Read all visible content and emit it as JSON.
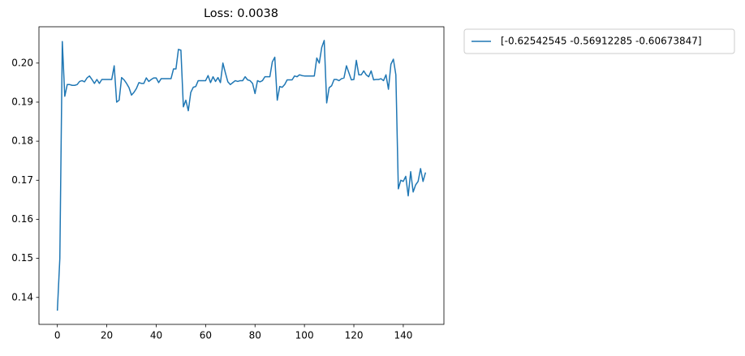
{
  "chart_data": {
    "type": "line",
    "title": "Loss: 0.0038",
    "x": [
      0,
      1,
      2,
      3,
      4,
      5,
      6,
      7,
      8,
      9,
      10,
      11,
      12,
      13,
      14,
      15,
      16,
      17,
      18,
      19,
      20,
      21,
      22,
      23,
      24,
      25,
      26,
      27,
      28,
      29,
      30,
      31,
      32,
      33,
      34,
      35,
      36,
      37,
      38,
      39,
      40,
      41,
      42,
      43,
      44,
      45,
      46,
      47,
      48,
      49,
      50,
      51,
      52,
      53,
      54,
      55,
      56,
      57,
      58,
      59,
      60,
      61,
      62,
      63,
      64,
      65,
      66,
      67,
      68,
      69,
      70,
      71,
      72,
      73,
      74,
      75,
      76,
      77,
      78,
      79,
      80,
      81,
      82,
      83,
      84,
      85,
      86,
      87,
      88,
      89,
      90,
      91,
      92,
      93,
      94,
      95,
      96,
      97,
      98,
      99,
      100,
      101,
      102,
      103,
      104,
      105,
      106,
      107,
      108,
      109,
      110,
      111,
      112,
      113,
      114,
      115,
      116,
      117,
      118,
      119,
      120,
      121,
      122,
      123,
      124,
      125,
      126,
      127,
      128,
      129,
      130,
      131,
      132,
      133,
      134,
      135,
      136,
      137,
      138,
      139,
      140,
      141,
      142,
      143,
      144,
      145,
      146,
      147,
      148,
      149
    ],
    "series": [
      {
        "name": "[-0.62542545 -0.56912285 -0.60673847]",
        "color": "#1f77b4",
        "values": [
          0.1366,
          0.15,
          0.2055,
          0.1915,
          0.1945,
          0.1945,
          0.1943,
          0.1943,
          0.1945,
          0.1953,
          0.1955,
          0.1952,
          0.1962,
          0.1967,
          0.1958,
          0.1948,
          0.1958,
          0.1948,
          0.1958,
          0.1958,
          0.1958,
          0.1958,
          0.1958,
          0.1993,
          0.19,
          0.1905,
          0.1963,
          0.1957,
          0.1948,
          0.1937,
          0.1918,
          0.1925,
          0.1935,
          0.195,
          0.1948,
          0.1948,
          0.1962,
          0.1953,
          0.1958,
          0.1962,
          0.1962,
          0.195,
          0.196,
          0.196,
          0.196,
          0.196,
          0.196,
          0.1985,
          0.1985,
          0.2035,
          0.2033,
          0.1888,
          0.1905,
          0.1878,
          0.1925,
          0.1938,
          0.194,
          0.1955,
          0.1955,
          0.1955,
          0.1955,
          0.1968,
          0.195,
          0.1965,
          0.1953,
          0.1963,
          0.195,
          0.2,
          0.1975,
          0.1952,
          0.1945,
          0.195,
          0.1955,
          0.1953,
          0.1955,
          0.1955,
          0.1965,
          0.1957,
          0.1955,
          0.1948,
          0.1922,
          0.1955,
          0.1952,
          0.1955,
          0.1965,
          0.1965,
          0.1965,
          0.2003,
          0.2015,
          0.1905,
          0.194,
          0.1938,
          0.1945,
          0.1957,
          0.1957,
          0.1957,
          0.1967,
          0.1965,
          0.197,
          0.1968,
          0.1967,
          0.1967,
          0.1967,
          0.1967,
          0.1967,
          0.2013,
          0.2,
          0.204,
          0.2058,
          0.1898,
          0.1937,
          0.1942,
          0.1958,
          0.1958,
          0.1955,
          0.196,
          0.1962,
          0.1993,
          0.1975,
          0.1957,
          0.1958,
          0.2007,
          0.197,
          0.197,
          0.198,
          0.197,
          0.1965,
          0.198,
          0.1957,
          0.1958,
          0.1958,
          0.196,
          0.1955,
          0.197,
          0.1933,
          0.1997,
          0.201,
          0.197,
          0.1678,
          0.17,
          0.1697,
          0.171,
          0.166,
          0.1722,
          0.167,
          0.1688,
          0.1697,
          0.173,
          0.1697,
          0.172
        ]
      }
    ],
    "xlim": [
      -7.45,
      156.45
    ],
    "xticks": [
      0,
      20,
      40,
      60,
      80,
      100,
      120,
      140
    ],
    "ylim": [
      0.1331,
      0.2093
    ],
    "yticks": [
      0.14,
      0.15,
      0.16,
      0.17,
      0.18,
      0.19,
      {
        "value": 0.2,
        "label": "0.20"
      }
    ],
    "grid": false,
    "legend": "outside upper right"
  }
}
